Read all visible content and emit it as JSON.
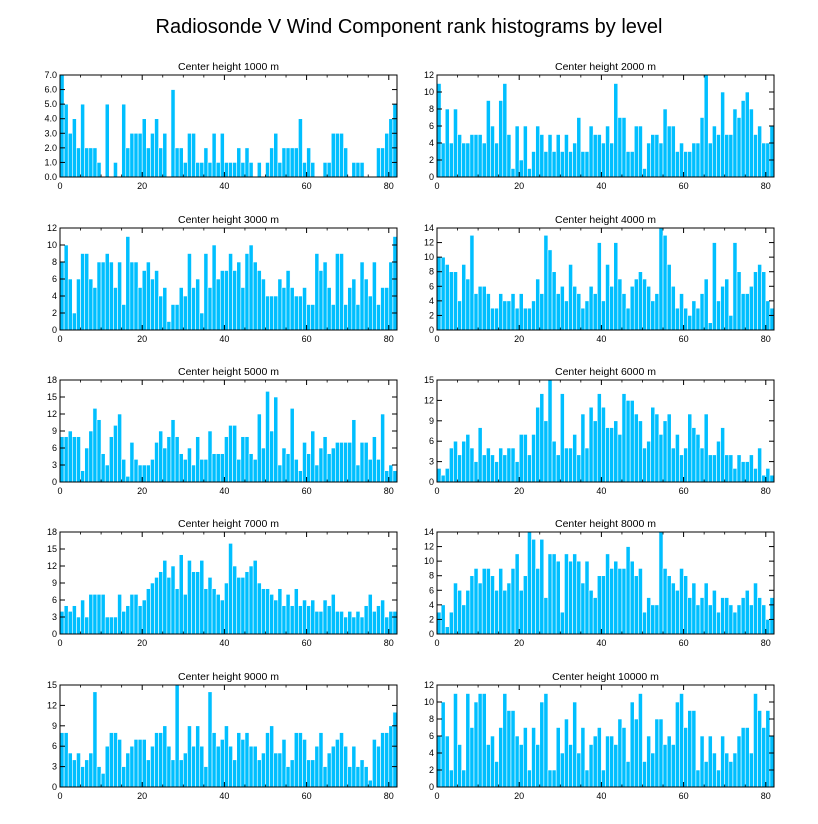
{
  "title": "Radiosonde V Wind Component rank histograms by level",
  "colors": {
    "bar": "#00bfff",
    "bar_edge": "#ffffff",
    "axis": "#000000"
  },
  "chart_data": [
    {
      "type": "bar",
      "title": "Center height 1000 m",
      "xlim": [
        0,
        82
      ],
      "ylim": [
        0,
        7
      ],
      "xticks": [
        0,
        20,
        40,
        60,
        80
      ],
      "yticks": [
        0,
        1,
        2,
        3,
        4,
        5,
        6,
        7
      ],
      "ytick_labels": [
        "0.0",
        "1.0",
        "2.0",
        "3.0",
        "4.0",
        "5.0",
        "6.0",
        "7.0"
      ],
      "values": [
        7,
        5,
        3,
        4,
        2,
        5,
        2,
        2,
        2,
        1,
        0,
        5,
        0,
        1,
        0,
        5,
        2,
        3,
        3,
        3,
        4,
        2,
        3,
        4,
        2,
        3,
        0,
        6,
        2,
        2,
        1,
        3,
        3,
        1,
        1,
        2,
        1,
        3,
        1,
        3,
        1,
        1,
        1,
        2,
        1,
        2,
        1,
        0,
        1,
        0,
        1,
        2,
        3,
        1,
        2,
        2,
        2,
        2,
        4,
        1,
        2,
        1,
        0,
        0,
        1,
        1,
        3,
        3,
        3,
        2,
        0,
        1,
        1,
        1,
        0,
        0,
        0,
        2,
        2,
        3,
        4,
        5
      ]
    },
    {
      "type": "bar",
      "title": "Center height 2000 m",
      "xlim": [
        0,
        82
      ],
      "ylim": [
        0,
        12
      ],
      "xticks": [
        0,
        20,
        40,
        60,
        80
      ],
      "yticks": [
        0,
        2,
        4,
        6,
        8,
        10,
        12
      ],
      "ytick_labels": [
        "0",
        "2",
        "4",
        "6",
        "8",
        "10",
        "12"
      ],
      "values": [
        11,
        4,
        8,
        4,
        8,
        5,
        4,
        4,
        5,
        5,
        5,
        4,
        9,
        6,
        4,
        9,
        11,
        5,
        1,
        6,
        2,
        6,
        1,
        3,
        6,
        5,
        3,
        5,
        3,
        5,
        3,
        5,
        3,
        4,
        7,
        3,
        3,
        6,
        5,
        5,
        4,
        6,
        4,
        11,
        7,
        7,
        3,
        3,
        6,
        6,
        1,
        4,
        5,
        5,
        4,
        8,
        6,
        6,
        3,
        4,
        3,
        3,
        4,
        4,
        7,
        12,
        4,
        6,
        5,
        10,
        5,
        5,
        8,
        7,
        9,
        10,
        8,
        5,
        6,
        4,
        4,
        6
      ]
    },
    {
      "type": "bar",
      "title": "Center height 3000 m",
      "xlim": [
        0,
        82
      ],
      "ylim": [
        0,
        12
      ],
      "xticks": [
        0,
        20,
        40,
        60,
        80
      ],
      "yticks": [
        0,
        2,
        4,
        6,
        8,
        10,
        12
      ],
      "ytick_labels": [
        "0",
        "2",
        "4",
        "6",
        "8",
        "10",
        "12"
      ],
      "values": [
        8,
        10,
        6,
        2,
        6,
        9,
        9,
        6,
        5,
        8,
        8,
        9,
        8,
        5,
        8,
        3,
        11,
        8,
        8,
        5,
        7,
        8,
        6,
        7,
        4,
        5,
        1,
        3,
        3,
        5,
        4,
        9,
        5,
        6,
        2,
        9,
        5,
        10,
        6,
        7,
        7,
        9,
        7,
        8,
        5,
        9,
        10,
        8,
        7,
        6,
        4,
        4,
        4,
        6,
        5,
        7,
        5,
        4,
        4,
        5,
        3,
        3,
        9,
        7,
        8,
        5,
        3,
        9,
        9,
        3,
        5,
        6,
        3,
        8,
        6,
        4,
        8,
        3,
        5,
        5,
        8,
        11
      ]
    },
    {
      "type": "bar",
      "title": "Center height 4000 m",
      "xlim": [
        0,
        82
      ],
      "ylim": [
        0,
        14
      ],
      "xticks": [
        0,
        20,
        40,
        60,
        80
      ],
      "yticks": [
        0,
        2,
        4,
        6,
        8,
        10,
        12,
        14
      ],
      "ytick_labels": [
        "0",
        "2",
        "4",
        "6",
        "8",
        "10",
        "12",
        "14"
      ],
      "values": [
        10,
        10,
        9,
        8,
        8,
        4,
        9,
        7,
        13,
        5,
        6,
        6,
        5,
        3,
        3,
        5,
        4,
        4,
        5,
        3,
        5,
        3,
        3,
        4,
        7,
        5,
        13,
        11,
        8,
        5,
        6,
        4,
        9,
        6,
        5,
        3,
        4,
        6,
        5,
        12,
        4,
        9,
        6,
        12,
        7,
        5,
        3,
        6,
        7,
        8,
        7,
        6,
        4,
        5,
        14,
        13,
        9,
        6,
        3,
        5,
        3,
        2,
        4,
        3,
        5,
        7,
        1,
        12,
        4,
        6,
        7,
        2,
        12,
        8,
        5,
        5,
        6,
        8,
        9,
        8,
        4,
        3
      ]
    },
    {
      "type": "bar",
      "title": "Center height 5000 m",
      "xlim": [
        0,
        82
      ],
      "ylim": [
        0,
        18
      ],
      "xticks": [
        0,
        20,
        40,
        60,
        80
      ],
      "yticks": [
        0,
        3,
        6,
        9,
        12,
        15,
        18
      ],
      "ytick_labels": [
        "0",
        "3",
        "6",
        "9",
        "12",
        "15",
        "18"
      ],
      "values": [
        8,
        8,
        9,
        8,
        8,
        2,
        6,
        9,
        13,
        11,
        5,
        3,
        8,
        10,
        12,
        4,
        1,
        7,
        4,
        3,
        3,
        3,
        4,
        7,
        9,
        6,
        8,
        11,
        8,
        5,
        4,
        6,
        3,
        8,
        4,
        4,
        9,
        5,
        5,
        5,
        8,
        10,
        10,
        4,
        8,
        8,
        5,
        4,
        12,
        6,
        16,
        9,
        15,
        3,
        6,
        5,
        13,
        4,
        2,
        7,
        5,
        9,
        3,
        6,
        8,
        5,
        6,
        7,
        7,
        7,
        7,
        11,
        3,
        7,
        7,
        4,
        8,
        4,
        12,
        2,
        3,
        2
      ]
    },
    {
      "type": "bar",
      "title": "Center height 6000 m",
      "xlim": [
        0,
        82
      ],
      "ylim": [
        0,
        15
      ],
      "xticks": [
        0,
        20,
        40,
        60,
        80
      ],
      "yticks": [
        0,
        3,
        6,
        9,
        12,
        15
      ],
      "ytick_labels": [
        "0",
        "3",
        "6",
        "9",
        "12",
        "15"
      ],
      "values": [
        2,
        1,
        2,
        5,
        6,
        4,
        6,
        7,
        5,
        3,
        8,
        4,
        5,
        4,
        3,
        5,
        4,
        5,
        5,
        3,
        7,
        7,
        4,
        7,
        11,
        13,
        9,
        15,
        6,
        4,
        13,
        5,
        5,
        7,
        4,
        10,
        5,
        11,
        9,
        13,
        11,
        8,
        8,
        9,
        7,
        13,
        12,
        12,
        10,
        9,
        5,
        6,
        11,
        10,
        7,
        9,
        10,
        5,
        7,
        4,
        5,
        10,
        8,
        7,
        5,
        10,
        4,
        4,
        6,
        8,
        4,
        4,
        2,
        4,
        3,
        3,
        4,
        2,
        5,
        1,
        2,
        1
      ]
    },
    {
      "type": "bar",
      "title": "Center height 7000 m",
      "xlim": [
        0,
        82
      ],
      "ylim": [
        0,
        18
      ],
      "xticks": [
        0,
        20,
        40,
        60,
        80
      ],
      "yticks": [
        0,
        3,
        6,
        9,
        12,
        15,
        18
      ],
      "ytick_labels": [
        "0",
        "3",
        "6",
        "9",
        "12",
        "15",
        "18"
      ],
      "values": [
        4,
        5,
        4,
        5,
        3,
        6,
        3,
        7,
        7,
        7,
        7,
        3,
        3,
        3,
        7,
        4,
        5,
        7,
        7,
        5,
        6,
        8,
        9,
        10,
        11,
        13,
        10,
        12,
        8,
        14,
        7,
        13,
        11,
        11,
        13,
        8,
        10,
        8,
        7,
        6,
        9,
        16,
        12,
        10,
        10,
        11,
        12,
        13,
        9,
        8,
        8,
        7,
        6,
        8,
        5,
        7,
        5,
        8,
        5,
        6,
        5,
        6,
        4,
        4,
        6,
        5,
        7,
        4,
        4,
        3,
        4,
        3,
        4,
        3,
        5,
        7,
        4,
        5,
        6,
        3,
        4,
        4
      ]
    },
    {
      "type": "bar",
      "title": "Center height 8000 m",
      "xlim": [
        0,
        82
      ],
      "ylim": [
        0,
        14
      ],
      "xticks": [
        0,
        20,
        40,
        60,
        80
      ],
      "yticks": [
        0,
        2,
        4,
        6,
        8,
        10,
        12,
        14
      ],
      "ytick_labels": [
        "0",
        "2",
        "4",
        "6",
        "8",
        "10",
        "12",
        "14"
      ],
      "values": [
        3,
        4,
        1,
        3,
        7,
        6,
        4,
        6,
        8,
        9,
        7,
        9,
        9,
        8,
        6,
        9,
        6,
        7,
        9,
        11,
        6,
        8,
        14,
        13,
        9,
        13,
        5,
        11,
        11,
        10,
        3,
        11,
        10,
        11,
        10,
        7,
        10,
        6,
        5,
        8,
        8,
        11,
        9,
        10,
        9,
        9,
        12,
        10,
        8,
        9,
        3,
        5,
        4,
        4,
        14,
        9,
        8,
        7,
        6,
        9,
        8,
        5,
        7,
        4,
        5,
        7,
        4,
        6,
        3,
        5,
        5,
        4,
        3,
        4,
        5,
        6,
        4,
        7,
        5,
        4,
        2,
        5
      ]
    },
    {
      "type": "bar",
      "title": "Center height 9000 m",
      "xlim": [
        0,
        82
      ],
      "ylim": [
        0,
        15
      ],
      "xticks": [
        0,
        20,
        40,
        60,
        80
      ],
      "yticks": [
        0,
        3,
        6,
        9,
        12,
        15
      ],
      "ytick_labels": [
        "0",
        "3",
        "6",
        "9",
        "12",
        "15"
      ],
      "values": [
        8,
        8,
        5,
        4,
        5,
        3,
        4,
        5,
        14,
        3,
        2,
        6,
        8,
        8,
        7,
        3,
        5,
        6,
        7,
        7,
        7,
        4,
        6,
        8,
        8,
        9,
        6,
        4,
        15,
        4,
        5,
        9,
        6,
        9,
        6,
        3,
        14,
        8,
        6,
        7,
        9,
        6,
        4,
        8,
        7,
        8,
        6,
        6,
        4,
        5,
        8,
        9,
        5,
        5,
        7,
        3,
        4,
        8,
        8,
        7,
        4,
        4,
        6,
        8,
        3,
        5,
        6,
        7,
        8,
        6,
        3,
        6,
        3,
        4,
        3,
        1,
        7,
        6,
        8,
        8,
        9,
        11
      ]
    },
    {
      "type": "bar",
      "title": "Center height 10000 m",
      "xlim": [
        0,
        82
      ],
      "ylim": [
        0,
        12
      ],
      "xticks": [
        0,
        20,
        40,
        60,
        80
      ],
      "yticks": [
        0,
        2,
        4,
        6,
        8,
        10,
        12
      ],
      "ytick_labels": [
        "0",
        "2",
        "4",
        "6",
        "8",
        "10",
        "12"
      ],
      "values": [
        6,
        10,
        6,
        2,
        11,
        5,
        2,
        11,
        7,
        10,
        11,
        11,
        5,
        6,
        3,
        7,
        11,
        9,
        9,
        6,
        5,
        7,
        2,
        7,
        5,
        10,
        11,
        2,
        2,
        7,
        4,
        8,
        5,
        10,
        4,
        7,
        2,
        5,
        6,
        7,
        2,
        6,
        6,
        5,
        8,
        7,
        3,
        10,
        8,
        11,
        3,
        6,
        4,
        8,
        8,
        5,
        6,
        5,
        10,
        11,
        7,
        9,
        9,
        2,
        6,
        3,
        6,
        4,
        2,
        6,
        4,
        3,
        4,
        6,
        7,
        7,
        4,
        11,
        9,
        7,
        9,
        6
      ]
    }
  ]
}
